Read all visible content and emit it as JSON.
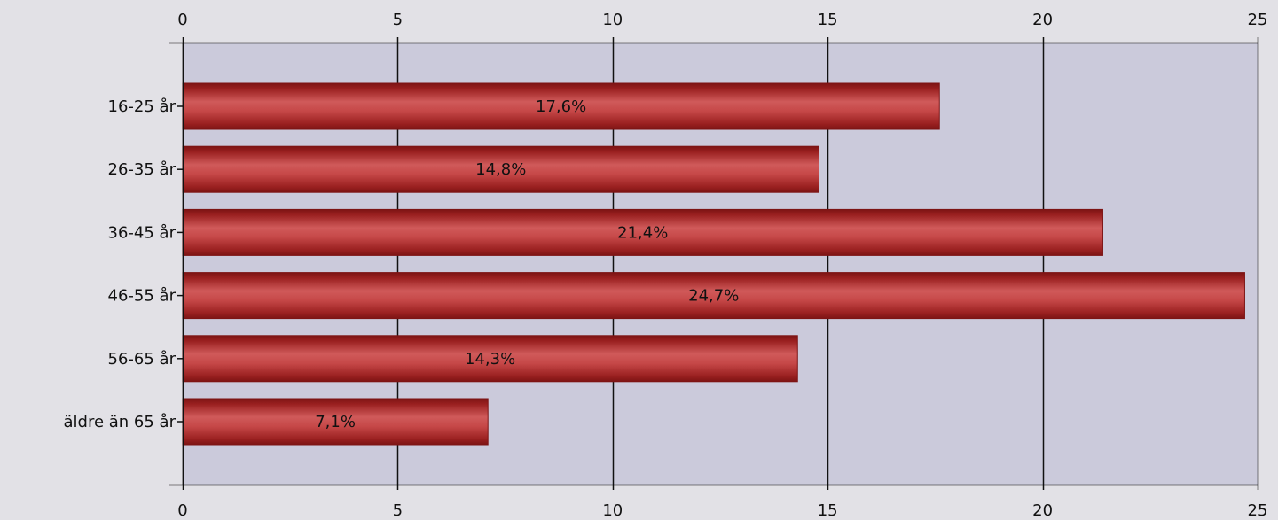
{
  "chart_data": {
    "type": "bar",
    "orientation": "horizontal",
    "categories": [
      "16-25 år",
      "26-35 år",
      "36-45 år",
      "46-55 år",
      "56-65 år",
      "äldre än 65 år"
    ],
    "values": [
      17.6,
      14.8,
      21.4,
      24.7,
      14.3,
      7.1
    ],
    "value_labels": [
      "17,6%",
      "14,8%",
      "21,4%",
      "24,7%",
      "14,3%",
      "7,1%"
    ],
    "xlim": [
      0,
      25
    ],
    "x_ticks": [
      0,
      5,
      10,
      15,
      20,
      25
    ],
    "x_tick_labels": [
      "0",
      "5",
      "10",
      "15",
      "20",
      "25"
    ],
    "grid": true,
    "x_axis_labels_top_and_bottom": true,
    "colors": {
      "page_background": "#e2e1e6",
      "plot_background": "#cbcadb",
      "bar": "#b23a3a",
      "bar_highlight": "#d05a5a",
      "bar_shadow": "#7d1414"
    }
  }
}
